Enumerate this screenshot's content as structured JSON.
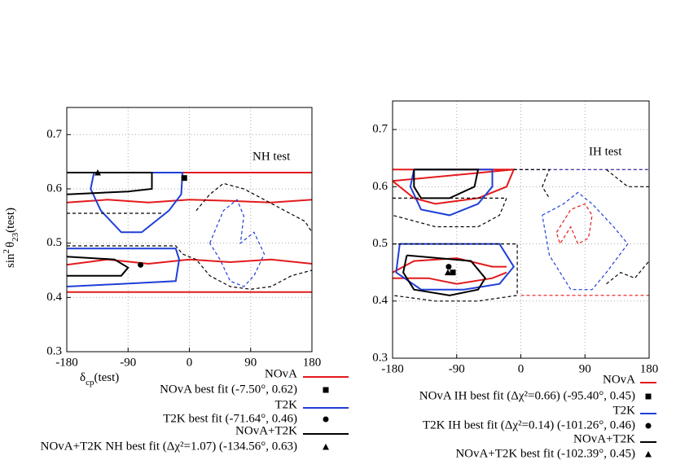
{
  "chart_data": [
    {
      "type": "contour",
      "annotation": "NH test",
      "ylabel": "sin",
      "ylabel_sup": "2",
      "ylabel_theta": "θ",
      "ylabel_sub": "23",
      "ylabel_suffix": "(test)",
      "xlabel": "δ",
      "xlabel_sub": "cp",
      "xlabel_suffix": "(test)",
      "xlim": [
        -180,
        180
      ],
      "ylim": [
        0.3,
        0.75
      ],
      "xticks": [
        -180,
        -90,
        0,
        90,
        180
      ],
      "yticks": [
        0.3,
        0.4,
        0.5,
        0.6,
        0.7
      ],
      "grid": true,
      "series": [
        {
          "name": "NOvA",
          "color": "#e31a1c",
          "contours": [
            {
              "style": "solid",
              "x": [
                -180,
                180,
                null,
                -180,
                -120,
                -60,
                0,
                60,
                120,
                180,
                null,
                -180,
                -120,
                -60,
                0,
                60,
                120,
                180,
                null,
                -180,
                180
              ],
              "y": [
                0.63,
                0.63,
                null,
                0.575,
                0.58,
                0.575,
                0.58,
                0.578,
                0.575,
                0.58,
                null,
                0.46,
                0.47,
                0.462,
                0.47,
                0.465,
                0.47,
                0.462,
                null,
                0.41,
                0.41
              ]
            }
          ]
        },
        {
          "name": "T2K",
          "color": "#1f3fd6",
          "contours": [
            {
              "style": "solid",
              "x": [
                -140,
                -10,
                -12,
                -30,
                -50,
                -70,
                -100,
                -130,
                -145,
                -140,
                null,
                -180,
                -100,
                -20,
                -15,
                -20,
                -100,
                -180
              ],
              "y": [
                0.63,
                0.63,
                0.59,
                0.56,
                0.54,
                0.52,
                0.52,
                0.56,
                0.6,
                0.63,
                null,
                0.49,
                0.49,
                0.49,
                0.47,
                0.43,
                0.425,
                0.42
              ]
            },
            {
              "style": "dashed",
              "x": [
                30,
                50,
                70,
                80,
                75,
                95,
                110,
                95,
                80,
                60,
                45,
                30
              ],
              "y": [
                0.5,
                0.56,
                0.58,
                0.55,
                0.5,
                0.52,
                0.48,
                0.44,
                0.42,
                0.43,
                0.47,
                0.5
              ]
            }
          ]
        },
        {
          "name": "NOvA+T2K",
          "color": "#000000",
          "contours": [
            {
              "style": "solid",
              "x": [
                -180,
                -55,
                -55,
                -90,
                -180,
                null,
                -180,
                -110,
                -90,
                -100,
                -180
              ],
              "y": [
                0.63,
                0.63,
                0.6,
                0.595,
                0.59,
                null,
                0.475,
                0.47,
                0.455,
                0.44,
                0.44
              ]
            },
            {
              "style": "dashed",
              "x": [
                -180,
                -40,
                null,
                -180,
                -20,
                -10,
                10,
                30,
                60,
                90,
                120,
                150,
                180,
                null,
                10,
                30,
                50,
                80,
                110,
                140,
                170,
                180
              ],
              "y": [
                0.555,
                0.555,
                null,
                0.495,
                0.495,
                0.48,
                0.47,
                0.44,
                0.42,
                0.415,
                0.42,
                0.44,
                0.45,
                null,
                0.56,
                0.59,
                0.61,
                0.6,
                0.58,
                0.56,
                0.54,
                0.52
              ]
            }
          ]
        }
      ],
      "best_fits": [
        {
          "label": "NOvA best fit (-7.50°, 0.62)",
          "marker": "square",
          "x": -7.5,
          "y": 0.62
        },
        {
          "label": "T2K best fit (-71.64°, 0.46)",
          "marker": "circle",
          "x": -71.64,
          "y": 0.46
        },
        {
          "label": "NOvA+T2K NH best fit (Δχ²=1.07) (-134.56°, 0.63)",
          "marker": "triangle",
          "x": -134.56,
          "y": 0.63
        }
      ]
    },
    {
      "type": "contour",
      "annotation": "IH test",
      "xlim": [
        -180,
        180
      ],
      "ylim": [
        0.3,
        0.75
      ],
      "xticks": [
        -180,
        -90,
        0,
        90,
        180
      ],
      "yticks": [
        0.3,
        0.4,
        0.5,
        0.6,
        0.7
      ],
      "grid": true,
      "series": [
        {
          "name": "NOvA",
          "color": "#e31a1c",
          "contours": [
            {
              "style": "solid",
              "x": [
                -180,
                -10,
                -20,
                -60,
                -120,
                -150,
                -180,
                null,
                -180,
                -150,
                -90,
                -40,
                -20,
                null,
                -180,
                -130,
                -90,
                -40,
                -20,
                null,
                -180,
                -10
              ],
              "y": [
                0.61,
                0.63,
                0.6,
                0.58,
                0.57,
                0.58,
                0.61,
                null,
                0.45,
                0.47,
                0.475,
                0.46,
                0.46,
                null,
                0.44,
                0.44,
                0.43,
                0.44,
                0.45,
                null,
                0.63,
                0.63
              ]
            },
            {
              "style": "dashed",
              "x": [
                -10,
                180,
                null,
                0,
                180,
                null,
                50,
                70,
                90,
                100,
                95,
                80,
                70,
                55,
                50
              ],
              "y": [
                0.63,
                0.63,
                null,
                0.41,
                0.41,
                null,
                0.52,
                0.56,
                0.57,
                0.55,
                0.51,
                0.5,
                0.53,
                0.5,
                0.52
              ]
            }
          ]
        },
        {
          "name": "T2K",
          "color": "#1f3fd6",
          "contours": [
            {
              "style": "solid",
              "x": [
                -150,
                -40,
                -40,
                -60,
                -100,
                -140,
                -155,
                -150,
                null,
                -170,
                -30,
                -10,
                -30,
                -80,
                -140,
                -175,
                -170
              ],
              "y": [
                0.63,
                0.63,
                0.6,
                0.57,
                0.55,
                0.56,
                0.6,
                0.63,
                null,
                0.5,
                0.5,
                0.46,
                0.43,
                0.42,
                0.42,
                0.45,
                0.5
              ]
            },
            {
              "style": "dashed",
              "x": [
                -10,
                180,
                null,
                30,
                60,
                80,
                100,
                130,
                150,
                120,
                100,
                70,
                40,
                30
              ],
              "y": [
                0.63,
                0.63,
                null,
                0.55,
                0.57,
                0.59,
                0.57,
                0.53,
                0.5,
                0.45,
                0.42,
                0.42,
                0.48,
                0.55
              ]
            }
          ]
        },
        {
          "name": "NOvA+T2K",
          "color": "#000000",
          "contours": [
            {
              "style": "solid",
              "x": [
                -150,
                -60,
                -65,
                -100,
                -140,
                -150,
                -150,
                null,
                -160,
                -70,
                -50,
                -60,
                -100,
                -150,
                -165,
                -160
              ],
              "y": [
                0.63,
                0.63,
                0.6,
                0.58,
                0.58,
                0.6,
                0.63,
                null,
                0.48,
                0.47,
                0.44,
                0.42,
                0.41,
                0.42,
                0.45,
                0.48
              ]
            },
            {
              "style": "dashed",
              "x": [
                -180,
                -20,
                -30,
                -60,
                -120,
                -180,
                null,
                -180,
                -5,
                -5,
                -60,
                -120,
                -180,
                null,
                -10,
                40,
                30,
                40,
                null,
                120,
                150,
                180,
                null,
                120,
                140,
                160,
                180
              ],
              "y": [
                0.58,
                0.58,
                0.55,
                0.53,
                0.53,
                0.55,
                null,
                0.5,
                0.5,
                0.41,
                0.4,
                0.4,
                0.41,
                null,
                0.63,
                0.63,
                0.6,
                0.58,
                null,
                0.63,
                0.6,
                0.6,
                null,
                0.43,
                0.45,
                0.44,
                0.47
              ]
            }
          ]
        }
      ],
      "best_fits": [
        {
          "label": "NOvA IH best fit (Δχ²=0.66) (-95.40°, 0.45)",
          "marker": "square",
          "x": -95.4,
          "y": 0.45
        },
        {
          "label": "T2K IH best fit (Δχ²=0.14) (-101.26°, 0.46)",
          "marker": "circle",
          "x": -101.26,
          "y": 0.46
        },
        {
          "label": "NOvA+T2K best fit  (-102.39°, 0.45)",
          "marker": "triangle",
          "x": -102.39,
          "y": 0.45
        }
      ]
    }
  ]
}
